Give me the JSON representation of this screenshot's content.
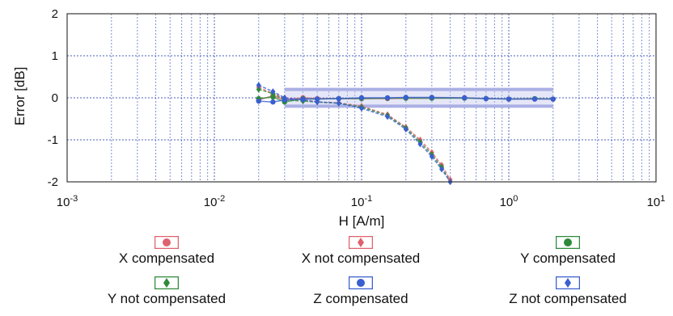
{
  "chart_data": {
    "type": "line",
    "x_scale": "log",
    "xlabel": "H [A/m]",
    "ylabel": "Error [dB]",
    "xlim": [
      0.001,
      10
    ],
    "ylim": [
      -2,
      2
    ],
    "x_ticks": [
      {
        "base": "10",
        "exp": "-3",
        "value": 0.001
      },
      {
        "base": "10",
        "exp": "-2",
        "value": 0.01
      },
      {
        "base": "10",
        "exp": "-1",
        "value": 0.1
      },
      {
        "base": "10",
        "exp": "0",
        "value": 1
      },
      {
        "base": "10",
        "exp": "1",
        "value": 10
      }
    ],
    "y_ticks": [
      "2",
      "1",
      "0",
      "-1",
      "-2"
    ],
    "y_tick_values": [
      2,
      1,
      0,
      -1,
      -2
    ],
    "grid": true,
    "tolerance_band": [
      -0.2,
      0.2
    ],
    "series": [
      {
        "name": "X compensated",
        "marker": "circle",
        "color": "#e0606e",
        "x": [
          0.02,
          0.025,
          0.03,
          0.04,
          0.05,
          0.07,
          0.1,
          0.15,
          0.2,
          0.3,
          0.5,
          0.7,
          1.0,
          1.5,
          2.0
        ],
        "y": [
          -0.05,
          0.05,
          -0.05,
          0.0,
          -0.02,
          -0.02,
          -0.02,
          -0.02,
          -0.01,
          -0.01,
          0.0,
          -0.02,
          -0.03,
          -0.03,
          -0.03
        ]
      },
      {
        "name": "X not compensated",
        "marker": "diamond",
        "color": "#e0606e",
        "x": [
          0.02,
          0.025,
          0.03,
          0.04,
          0.05,
          0.07,
          0.1,
          0.15,
          0.2,
          0.25,
          0.3,
          0.35,
          0.4
        ],
        "y": [
          0.25,
          0.1,
          0.0,
          -0.05,
          -0.1,
          -0.12,
          -0.2,
          -0.4,
          -0.7,
          -1.0,
          -1.3,
          -1.6,
          -1.95
        ]
      },
      {
        "name": "Y compensated",
        "marker": "circle",
        "color": "#2e8a3a",
        "x": [
          0.02,
          0.025,
          0.03,
          0.04,
          0.05,
          0.07,
          0.1,
          0.15,
          0.2,
          0.3,
          0.5,
          0.7,
          1.0,
          1.5,
          2.0
        ],
        "y": [
          -0.02,
          0.02,
          -0.1,
          -0.02,
          -0.03,
          -0.02,
          -0.02,
          -0.01,
          -0.01,
          -0.01,
          -0.01,
          -0.02,
          -0.03,
          -0.02,
          -0.03
        ]
      },
      {
        "name": "Y not compensated",
        "marker": "diamond",
        "color": "#2e8a3a",
        "x": [
          0.02,
          0.025,
          0.03,
          0.04,
          0.05,
          0.07,
          0.1,
          0.15,
          0.2,
          0.25,
          0.3,
          0.35,
          0.4
        ],
        "y": [
          0.2,
          0.1,
          -0.05,
          -0.08,
          -0.1,
          -0.13,
          -0.22,
          -0.42,
          -0.72,
          -1.05,
          -1.35,
          -1.65,
          -2.0
        ]
      },
      {
        "name": "Z compensated",
        "marker": "circle",
        "color": "#3a5fcf",
        "x": [
          0.02,
          0.025,
          0.03,
          0.04,
          0.05,
          0.07,
          0.1,
          0.15,
          0.2,
          0.3,
          0.5,
          0.7,
          1.0,
          1.5,
          2.0
        ],
        "y": [
          -0.08,
          -0.1,
          -0.05,
          -0.03,
          -0.03,
          -0.02,
          0.0,
          0.0,
          0.01,
          0.01,
          0.0,
          -0.02,
          -0.03,
          -0.03,
          -0.03
        ]
      },
      {
        "name": "Z not compensated",
        "marker": "diamond",
        "color": "#3a5fcf",
        "x": [
          0.02,
          0.025,
          0.03,
          0.04,
          0.05,
          0.07,
          0.1,
          0.15,
          0.2,
          0.25,
          0.3,
          0.35,
          0.4
        ],
        "y": [
          0.3,
          0.15,
          0.0,
          -0.05,
          -0.1,
          -0.13,
          -0.25,
          -0.45,
          -0.75,
          -1.1,
          -1.4,
          -1.7,
          -2.0
        ]
      }
    ]
  },
  "legend": [
    {
      "label": "X compensated"
    },
    {
      "label": "X not compensated"
    },
    {
      "label": "Y compensated"
    },
    {
      "label": "Y not compensated"
    },
    {
      "label": "Z compensated"
    },
    {
      "label": "Z not compensated"
    }
  ]
}
